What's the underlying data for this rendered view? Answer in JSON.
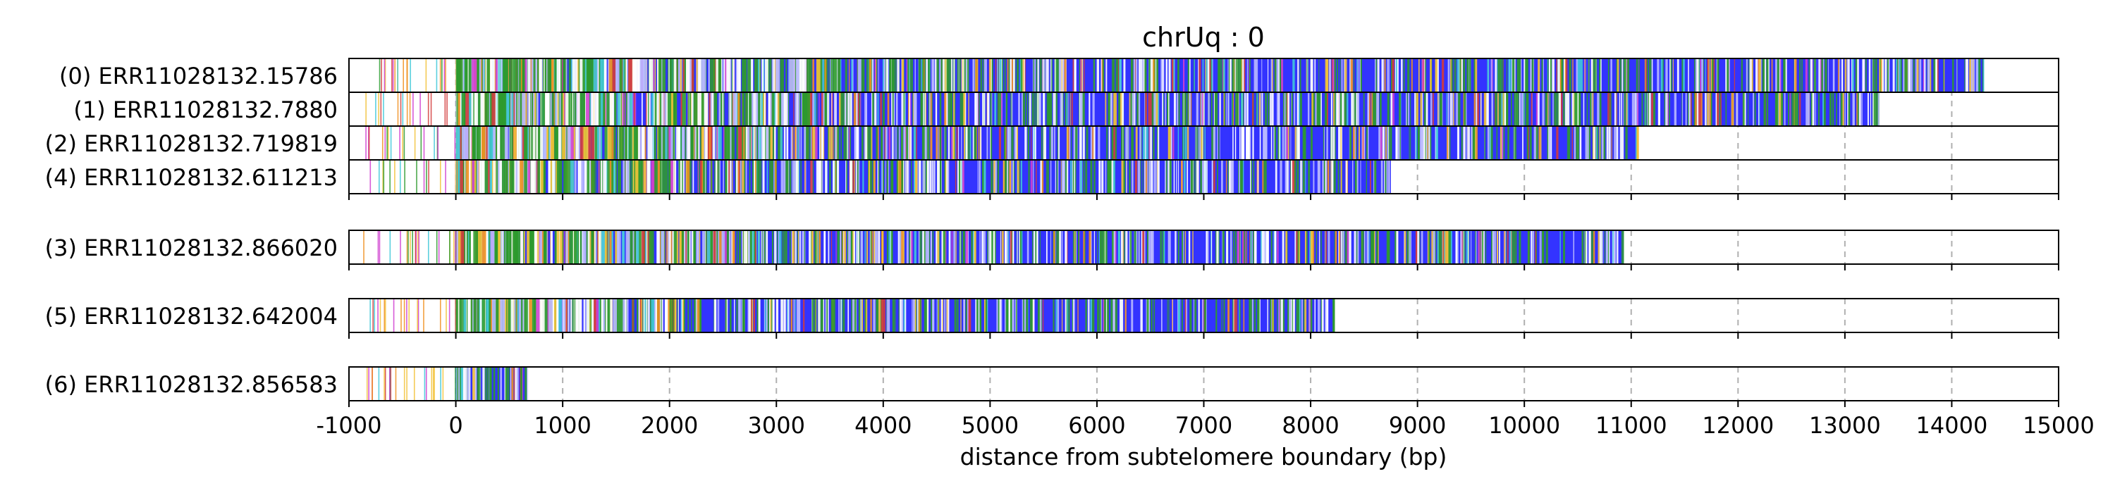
{
  "chart_data": {
    "type": "bar",
    "title": "chrUq : 0",
    "xlabel": "distance from subtelomere boundary (bp)",
    "ylabel": "",
    "xlim": [
      -1000,
      15000
    ],
    "x_ticks": [
      -1000,
      0,
      1000,
      2000,
      3000,
      4000,
      5000,
      6000,
      7000,
      8000,
      9000,
      10000,
      11000,
      12000,
      13000,
      14000,
      15000
    ],
    "x_tick_labels": [
      "-1000",
      "0",
      "1000",
      "2000",
      "3000",
      "4000",
      "5000",
      "6000",
      "7000",
      "8000",
      "9000",
      "10000",
      "11000",
      "12000",
      "13000",
      "14000",
      "15000"
    ],
    "grid": "vertical dashed",
    "colors": {
      "read": "#3333ff",
      "green": "#2e9a2e",
      "yellow": "#f2c23a",
      "orange": "#f09020",
      "pale": "#b8b8ff",
      "white": "#ffffff",
      "red": "#d23c3c",
      "magenta": "#d040d0",
      "cyan": "#40c8d8",
      "frame": "#000000",
      "grid": "#b0b0b0"
    },
    "panels": [
      {
        "reads": [
          {
            "label": "(0) ERR11028132.15786",
            "start": -1000,
            "end": 14300,
            "aligned_start": 0
          },
          {
            "label": "(1) ERR11028132.7880",
            "start": -1000,
            "end": 13320,
            "aligned_start": 0
          },
          {
            "label": "(2) ERR11028132.719819",
            "start": -1000,
            "end": 11060,
            "aligned_start": 0
          },
          {
            "label": "(4) ERR11028132.611213",
            "start": -1000,
            "end": 8750,
            "aligned_start": 0
          }
        ]
      },
      {
        "reads": [
          {
            "label": "(3) ERR11028132.866020",
            "start": -1000,
            "end": 10930,
            "aligned_start": 0
          }
        ]
      },
      {
        "reads": [
          {
            "label": "(5) ERR11028132.642004",
            "start": -1000,
            "end": 8220,
            "aligned_start": 0
          }
        ]
      },
      {
        "reads": [
          {
            "label": "(6) ERR11028132.856583",
            "start": -1000,
            "end": 680,
            "aligned_start": 0
          }
        ]
      }
    ],
    "highlight_regions": [
      {
        "read": "(2) ERR11028132.719819",
        "start": 7150,
        "end": 7650,
        "color": "pale"
      }
    ]
  }
}
